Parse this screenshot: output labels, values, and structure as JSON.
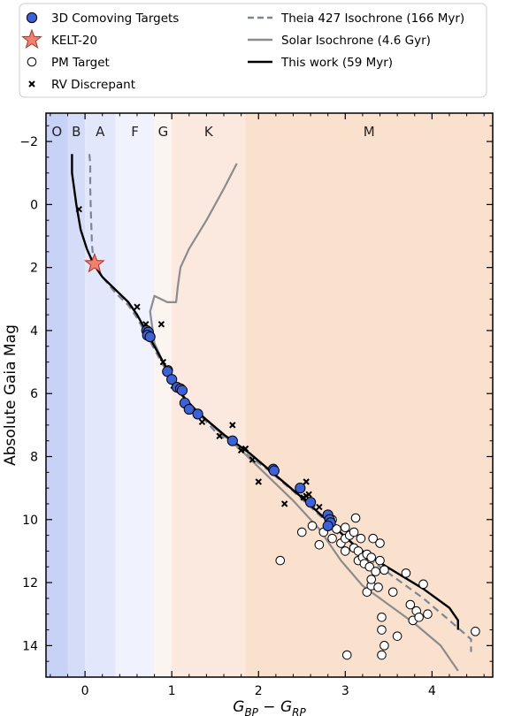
{
  "chart_data": {
    "type": "scatter",
    "xlabel": "G_BP − G_RP",
    "ylabel": "Absolute Gaia Mag",
    "xlim": [
      -0.45,
      4.7
    ],
    "ylim": [
      15.0,
      -2.9
    ],
    "x_ticks": [
      0,
      1,
      2,
      3,
      4
    ],
    "y_ticks": [
      -2,
      0,
      2,
      4,
      6,
      8,
      10,
      12,
      14
    ],
    "grid": false,
    "legend_position": "top (outside, two columns)",
    "spectral_bands": [
      {
        "label": "O",
        "x0": -0.45,
        "x1": -0.2,
        "color": "#c8d2f7"
      },
      {
        "label": "B",
        "x0": -0.2,
        "x1": 0.0,
        "color": "#d4dcf8"
      },
      {
        "label": "A",
        "x0": 0.0,
        "x1": 0.35,
        "color": "#e2e7fb"
      },
      {
        "label": "F",
        "x0": 0.35,
        "x1": 0.8,
        "color": "#f0f2fd"
      },
      {
        "label": "G",
        "x0": 0.8,
        "x1": 1.0,
        "color": "#fcf4ef"
      },
      {
        "label": "K",
        "x0": 1.0,
        "x1": 1.85,
        "color": "#fbe9df"
      },
      {
        "label": "M",
        "x0": 1.85,
        "x1": 4.7,
        "color": "#f9e1cd"
      }
    ],
    "series": [
      {
        "name": "Theia 427 Isochrone (166 Myr)",
        "kind": "line",
        "style": "dashed",
        "color": "#7b8699",
        "points": [
          [
            0.05,
            -1.6
          ],
          [
            0.06,
            -1.3
          ],
          [
            0.06,
            -0.5
          ],
          [
            0.07,
            0.5
          ],
          [
            0.08,
            1.3
          ],
          [
            0.1,
            1.8
          ],
          [
            0.2,
            2.3
          ],
          [
            0.35,
            2.8
          ],
          [
            0.5,
            3.2
          ],
          [
            0.6,
            3.6
          ],
          [
            0.7,
            4.1
          ],
          [
            0.8,
            4.6
          ],
          [
            0.9,
            5.1
          ],
          [
            1.0,
            5.5
          ],
          [
            1.1,
            6.0
          ],
          [
            1.3,
            6.6
          ],
          [
            1.5,
            7.2
          ],
          [
            1.8,
            7.8
          ],
          [
            2.1,
            8.4
          ],
          [
            2.4,
            9.1
          ],
          [
            2.6,
            9.6
          ],
          [
            2.8,
            10.1
          ],
          [
            3.0,
            10.7
          ],
          [
            3.3,
            11.3
          ],
          [
            3.6,
            11.9
          ],
          [
            3.9,
            12.5
          ],
          [
            4.2,
            13.2
          ],
          [
            4.45,
            13.8
          ],
          [
            4.45,
            14.2
          ]
        ]
      },
      {
        "name": "Solar Isochrone (4.6 Gyr)",
        "kind": "line",
        "style": "solid",
        "color": "#8c8c8c",
        "points": [
          [
            1.75,
            -1.3
          ],
          [
            1.6,
            -0.5
          ],
          [
            1.4,
            0.5
          ],
          [
            1.2,
            1.4
          ],
          [
            1.1,
            2.0
          ],
          [
            1.07,
            2.6
          ],
          [
            1.05,
            3.1
          ],
          [
            0.95,
            3.1
          ],
          [
            0.8,
            2.9
          ],
          [
            0.75,
            3.4
          ],
          [
            0.8,
            4.4
          ],
          [
            0.9,
            5.0
          ],
          [
            1.0,
            5.6
          ],
          [
            1.2,
            6.3
          ],
          [
            1.5,
            7.1
          ],
          [
            1.8,
            7.8
          ],
          [
            2.1,
            8.6
          ],
          [
            2.4,
            9.4
          ],
          [
            2.7,
            10.3
          ],
          [
            2.95,
            11.3
          ],
          [
            3.2,
            12.1
          ],
          [
            3.5,
            12.7
          ],
          [
            3.8,
            13.3
          ],
          [
            4.1,
            14.0
          ],
          [
            4.3,
            14.8
          ]
        ]
      },
      {
        "name": "This work (59 Myr)",
        "kind": "line",
        "style": "solid",
        "color": "#000000",
        "points": [
          [
            -0.15,
            -1.6
          ],
          [
            -0.15,
            -1.0
          ],
          [
            -0.1,
            0.0
          ],
          [
            -0.05,
            0.8
          ],
          [
            0.02,
            1.4
          ],
          [
            0.1,
            1.9
          ],
          [
            0.2,
            2.3
          ],
          [
            0.35,
            2.7
          ],
          [
            0.5,
            3.1
          ],
          [
            0.6,
            3.5
          ],
          [
            0.7,
            4.0
          ],
          [
            0.8,
            4.5
          ],
          [
            0.9,
            5.0
          ],
          [
            1.0,
            5.5
          ],
          [
            1.1,
            6.0
          ],
          [
            1.3,
            6.6
          ],
          [
            1.6,
            7.3
          ],
          [
            1.9,
            7.9
          ],
          [
            2.2,
            8.6
          ],
          [
            2.5,
            9.3
          ],
          [
            2.7,
            9.8
          ],
          [
            2.9,
            10.3
          ],
          [
            3.1,
            10.8
          ],
          [
            3.3,
            11.2
          ],
          [
            3.6,
            11.7
          ],
          [
            3.9,
            12.2
          ],
          [
            4.2,
            12.8
          ],
          [
            4.3,
            13.2
          ],
          [
            4.3,
            13.5
          ]
        ]
      },
      {
        "name": "3D Comoving Targets",
        "kind": "points",
        "marker": "circle-filled",
        "color": "#3b62d9",
        "points": [
          [
            0.71,
            4.0
          ],
          [
            0.73,
            4.05
          ],
          [
            0.72,
            4.15
          ],
          [
            0.75,
            4.2
          ],
          [
            0.95,
            5.3
          ],
          [
            1.0,
            5.55
          ],
          [
            1.06,
            5.8
          ],
          [
            1.1,
            5.85
          ],
          [
            1.12,
            5.9
          ],
          [
            1.15,
            6.3
          ],
          [
            1.2,
            6.5
          ],
          [
            1.3,
            6.65
          ],
          [
            1.7,
            7.5
          ],
          [
            2.17,
            8.4
          ],
          [
            2.18,
            8.45
          ],
          [
            2.48,
            9.0
          ],
          [
            2.6,
            9.45
          ],
          [
            2.8,
            9.85
          ],
          [
            2.82,
            10.0
          ],
          [
            2.83,
            10.1
          ],
          [
            2.8,
            10.2
          ]
        ]
      },
      {
        "name": "KELT-20",
        "kind": "points",
        "marker": "star",
        "color": "#f08070",
        "points": [
          [
            0.11,
            1.88
          ]
        ]
      },
      {
        "name": "PM Target",
        "kind": "points",
        "marker": "circle-open",
        "color": "#ffffff",
        "points": [
          [
            0.96,
            5.25
          ],
          [
            2.25,
            11.3
          ],
          [
            2.5,
            10.4
          ],
          [
            2.62,
            10.2
          ],
          [
            2.7,
            10.8
          ],
          [
            2.75,
            10.4
          ],
          [
            2.85,
            10.0
          ],
          [
            2.85,
            10.6
          ],
          [
            2.9,
            10.3
          ],
          [
            2.95,
            10.75
          ],
          [
            3.0,
            10.25
          ],
          [
            3.0,
            10.6
          ],
          [
            3.0,
            11.0
          ],
          [
            3.02,
            14.3
          ],
          [
            3.05,
            10.5
          ],
          [
            3.1,
            10.4
          ],
          [
            3.1,
            10.9
          ],
          [
            3.12,
            9.95
          ],
          [
            3.15,
            11.0
          ],
          [
            3.15,
            11.3
          ],
          [
            3.18,
            10.6
          ],
          [
            3.2,
            11.2
          ],
          [
            3.22,
            11.4
          ],
          [
            3.25,
            11.1
          ],
          [
            3.25,
            12.3
          ],
          [
            3.28,
            11.5
          ],
          [
            3.3,
            11.2
          ],
          [
            3.3,
            12.1
          ],
          [
            3.3,
            11.9
          ],
          [
            3.32,
            10.6
          ],
          [
            3.35,
            11.65
          ],
          [
            3.38,
            12.15
          ],
          [
            3.4,
            10.75
          ],
          [
            3.4,
            11.3
          ],
          [
            3.42,
            13.1
          ],
          [
            3.42,
            13.5
          ],
          [
            3.42,
            14.3
          ],
          [
            3.45,
            11.6
          ],
          [
            3.45,
            14.0
          ],
          [
            3.55,
            12.3
          ],
          [
            3.6,
            13.7
          ],
          [
            3.7,
            11.7
          ],
          [
            3.75,
            12.7
          ],
          [
            3.78,
            13.2
          ],
          [
            3.82,
            12.9
          ],
          [
            3.85,
            13.1
          ],
          [
            3.9,
            12.05
          ],
          [
            3.95,
            13.0
          ],
          [
            4.5,
            13.55
          ]
        ]
      },
      {
        "name": "RV Discrepant",
        "kind": "points",
        "marker": "x",
        "color": "#000000",
        "points": [
          [
            -0.07,
            0.15
          ],
          [
            0.6,
            3.25
          ],
          [
            0.7,
            3.8
          ],
          [
            0.88,
            3.8
          ],
          [
            0.9,
            5.0
          ],
          [
            1.02,
            5.75
          ],
          [
            1.35,
            6.9
          ],
          [
            1.55,
            7.35
          ],
          [
            1.7,
            7.0
          ],
          [
            1.8,
            7.8
          ],
          [
            1.85,
            7.75
          ],
          [
            1.93,
            8.1
          ],
          [
            2.0,
            8.8
          ],
          [
            2.3,
            9.5
          ],
          [
            2.52,
            9.3
          ],
          [
            2.55,
            9.25
          ],
          [
            2.55,
            8.8
          ],
          [
            2.58,
            9.2
          ],
          [
            2.62,
            9.5
          ],
          [
            2.7,
            9.6
          ]
        ]
      }
    ]
  },
  "legend": {
    "items": [
      {
        "label": "3D Comoving Targets",
        "marker": "circle-filled"
      },
      {
        "label": "KELT-20",
        "marker": "star"
      },
      {
        "label": "PM Target",
        "marker": "circle-open"
      },
      {
        "label": "RV Discrepant",
        "marker": "x"
      },
      {
        "label": "Theia 427 Isochrone (166 Myr)",
        "marker": "line-dashed"
      },
      {
        "label": "Solar Isochrone (4.6 Gyr)",
        "marker": "line-gray"
      },
      {
        "label": "This work (59 Myr)",
        "marker": "line-black"
      }
    ]
  },
  "colors": {
    "comoving_fill": "#3b62d9",
    "kelt_fill": "#f08070",
    "theia_line": "#7b8699",
    "solar_line": "#8c8c8c",
    "this_work_line": "#000000"
  }
}
